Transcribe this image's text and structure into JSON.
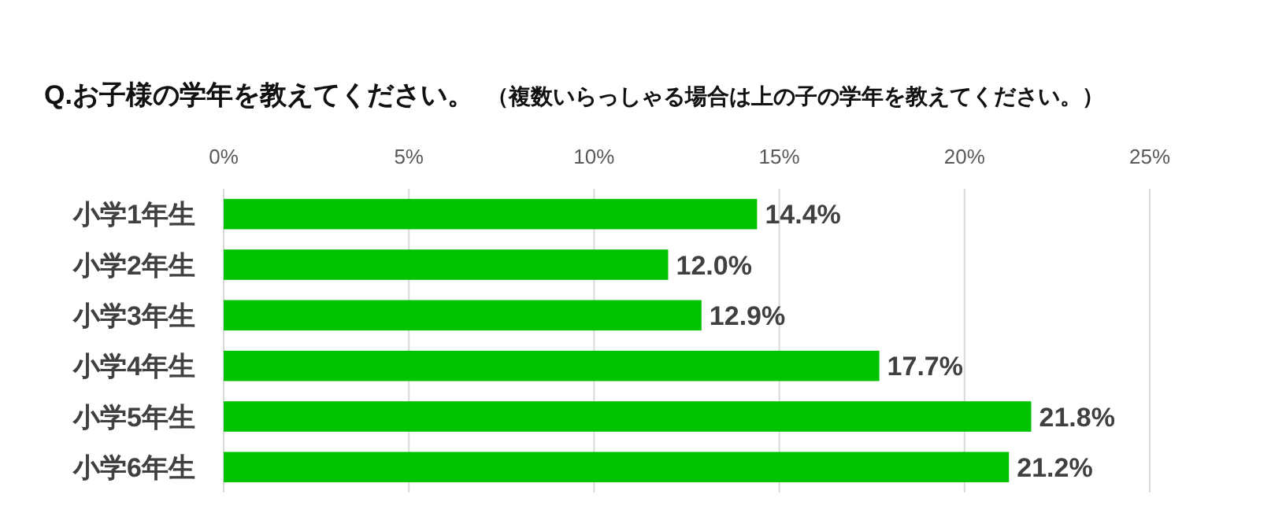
{
  "chart_data": {
    "type": "bar",
    "orientation": "horizontal",
    "title": "Q.お子様の学年を教えてください。",
    "subtitle": "（複数いらっしゃる場合は上の子の学年を教えてください。）",
    "categories": [
      "小学1年生",
      "小学2年生",
      "小学3年生",
      "小学4年生",
      "小学5年生",
      "小学6年生"
    ],
    "values": [
      14.4,
      12.0,
      12.9,
      17.7,
      21.8,
      21.2
    ],
    "value_labels": [
      "14.4%",
      "12.0%",
      "12.9%",
      "17.7%",
      "21.8%",
      "21.2%"
    ],
    "color": "#00c300",
    "xlim": [
      0,
      25
    ],
    "xticks": [
      {
        "value": 0,
        "label": "0%"
      },
      {
        "value": 5,
        "label": "5%"
      },
      {
        "value": 10,
        "label": "10%"
      },
      {
        "value": 15,
        "label": "15%"
      },
      {
        "value": 20,
        "label": "20%"
      },
      {
        "value": 25,
        "label": "25%"
      }
    ],
    "grid": "x"
  }
}
